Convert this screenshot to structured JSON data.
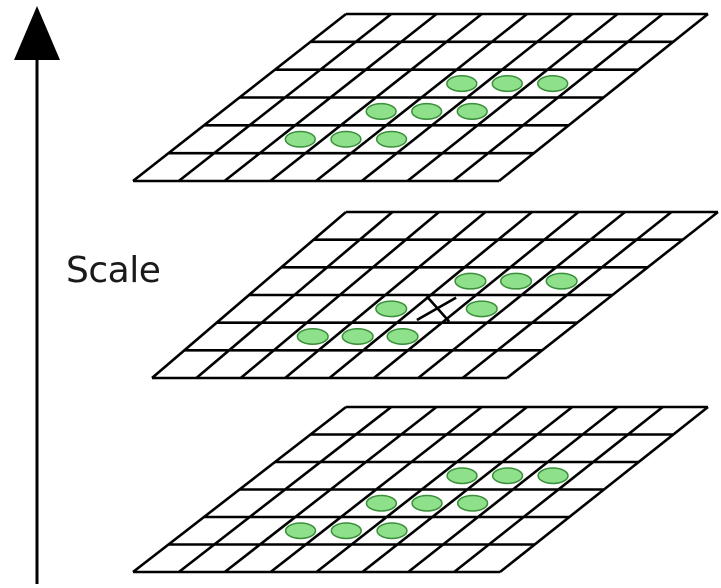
{
  "axis": {
    "label": "Scale",
    "direction": "up"
  },
  "levels": [
    {
      "id": "top",
      "grid": {
        "rows": 6,
        "cols": 8
      },
      "highlighted": [
        [
          2,
          4
        ],
        [
          2,
          5
        ],
        [
          2,
          6
        ],
        [
          3,
          3
        ],
        [
          3,
          4
        ],
        [
          3,
          5
        ],
        [
          4,
          2
        ],
        [
          4,
          3
        ],
        [
          4,
          4
        ]
      ],
      "center_mark": false
    },
    {
      "id": "middle",
      "grid": {
        "rows": 6,
        "cols": 8
      },
      "highlighted": [
        [
          2,
          4
        ],
        [
          2,
          5
        ],
        [
          2,
          6
        ],
        [
          3,
          3
        ],
        [
          3,
          5
        ],
        [
          4,
          2
        ],
        [
          4,
          3
        ],
        [
          4,
          4
        ]
      ],
      "center_mark": true
    },
    {
      "id": "bottom",
      "grid": {
        "rows": 6,
        "cols": 8
      },
      "highlighted": [
        [
          2,
          4
        ],
        [
          2,
          5
        ],
        [
          2,
          6
        ],
        [
          3,
          3
        ],
        [
          3,
          4
        ],
        [
          3,
          5
        ],
        [
          4,
          2
        ],
        [
          4,
          3
        ],
        [
          4,
          4
        ]
      ],
      "center_mark": false
    }
  ],
  "colors": {
    "grid_line": "#000000",
    "sample_fill": "#8fe08a",
    "sample_stroke": "#3a8f3a",
    "arrow": "#000000",
    "center_mark": "#000000"
  }
}
